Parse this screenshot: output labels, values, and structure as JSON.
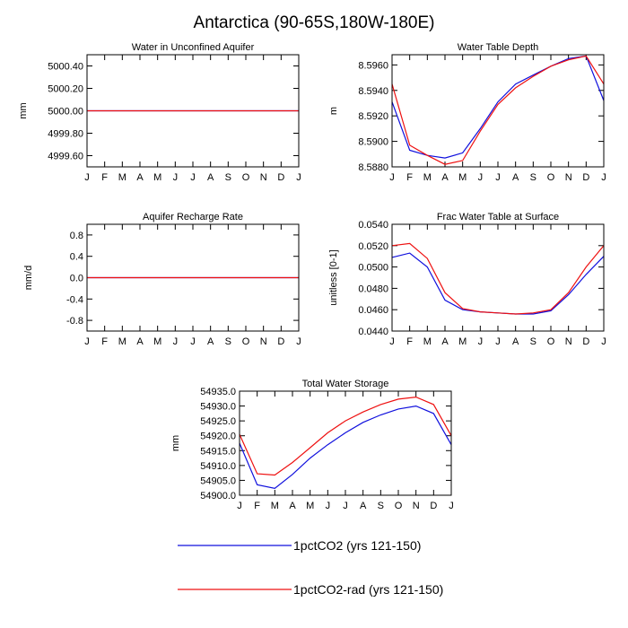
{
  "title": "Antarctica (90-65S,180W-180E)",
  "months": [
    "J",
    "F",
    "M",
    "A",
    "M",
    "J",
    "J",
    "A",
    "S",
    "O",
    "N",
    "D",
    "J"
  ],
  "legend": {
    "entries": [
      {
        "label": "1pctCO2 (yrs 121-150)",
        "color": "#1010dd"
      },
      {
        "label": "1pctCO2-rad (yrs 121-150)",
        "color": "#ee1111"
      }
    ]
  },
  "chart_data": [
    {
      "type": "line",
      "title": "Water in Unconfined Aquifer",
      "ylabel": "mm",
      "ylim": [
        4999.5,
        5000.5
      ],
      "yticks": [
        4999.6,
        4999.8,
        5000.0,
        5000.2,
        5000.4
      ],
      "ytick_labels": [
        "4999.60",
        "4999.80",
        "5000.00",
        "5000.20",
        "5000.40"
      ],
      "x": [
        "J",
        "F",
        "M",
        "A",
        "M",
        "J",
        "J",
        "A",
        "S",
        "O",
        "N",
        "D",
        "J"
      ],
      "series": [
        {
          "name": "1pctCO2 (yrs 121-150)",
          "color": "#1010dd",
          "values": [
            5000,
            5000,
            5000,
            5000,
            5000,
            5000,
            5000,
            5000,
            5000,
            5000,
            5000,
            5000,
            5000
          ]
        },
        {
          "name": "1pctCO2-rad (yrs 121-150)",
          "color": "#ee1111",
          "values": [
            5000,
            5000,
            5000,
            5000,
            5000,
            5000,
            5000,
            5000,
            5000,
            5000,
            5000,
            5000,
            5000
          ]
        }
      ]
    },
    {
      "type": "line",
      "title": "Water Table Depth",
      "ylabel": "m",
      "ylim": [
        8.588,
        8.5968
      ],
      "yticks": [
        8.588,
        8.59,
        8.592,
        8.594,
        8.596
      ],
      "ytick_labels": [
        "8.5880",
        "8.5900",
        "8.5920",
        "8.5940",
        "8.5960"
      ],
      "x": [
        "J",
        "F",
        "M",
        "A",
        "M",
        "J",
        "J",
        "A",
        "S",
        "O",
        "N",
        "D",
        "J"
      ],
      "series": [
        {
          "name": "1pctCO2 (yrs 121-150)",
          "color": "#1010dd",
          "values": [
            8.5931,
            8.5893,
            8.5889,
            8.5887,
            8.5891,
            8.591,
            8.5931,
            8.5945,
            8.5952,
            8.5959,
            8.5965,
            8.5967,
            8.5932
          ]
        },
        {
          "name": "1pctCO2-rad (yrs 121-150)",
          "color": "#ee1111",
          "values": [
            8.5945,
            8.5897,
            8.5889,
            8.5882,
            8.5885,
            8.5908,
            8.5929,
            8.5942,
            8.5951,
            8.5959,
            8.5964,
            8.5967,
            8.5945
          ]
        }
      ]
    },
    {
      "type": "line",
      "title": "Aquifer Recharge Rate",
      "ylabel": "mm/d",
      "ylim": [
        -1.0,
        1.0
      ],
      "yticks": [
        -0.8,
        -0.4,
        0.0,
        0.4,
        0.8
      ],
      "ytick_labels": [
        "-0.8",
        "-0.4",
        "0.0",
        "0.4",
        "0.8"
      ],
      "x": [
        "J",
        "F",
        "M",
        "A",
        "M",
        "J",
        "J",
        "A",
        "S",
        "O",
        "N",
        "D",
        "J"
      ],
      "series": [
        {
          "name": "1pctCO2 (yrs 121-150)",
          "color": "#1010dd",
          "values": [
            0,
            0,
            0,
            0,
            0,
            0,
            0,
            0,
            0,
            0,
            0,
            0,
            0
          ]
        },
        {
          "name": "1pctCO2-rad (yrs 121-150)",
          "color": "#ee1111",
          "values": [
            0,
            0,
            0,
            0,
            0,
            0,
            0,
            0,
            0,
            0,
            0,
            0,
            0
          ]
        }
      ]
    },
    {
      "type": "line",
      "title": "Frac Water Table at Surface",
      "ylabel": "unitless [0-1]",
      "ylim": [
        0.044,
        0.054
      ],
      "yticks": [
        0.044,
        0.046,
        0.048,
        0.05,
        0.052,
        0.054
      ],
      "ytick_labels": [
        "0.0440",
        "0.0460",
        "0.0480",
        "0.0500",
        "0.0520",
        "0.0540"
      ],
      "x": [
        "J",
        "F",
        "M",
        "A",
        "M",
        "J",
        "J",
        "A",
        "S",
        "O",
        "N",
        "D",
        "J"
      ],
      "series": [
        {
          "name": "1pctCO2 (yrs 121-150)",
          "color": "#1010dd",
          "values": [
            0.0509,
            0.0513,
            0.05,
            0.0469,
            0.046,
            0.0458,
            0.0457,
            0.0456,
            0.0456,
            0.0459,
            0.0474,
            0.0493,
            0.051
          ]
        },
        {
          "name": "1pctCO2-rad (yrs 121-150)",
          "color": "#ee1111",
          "values": [
            0.052,
            0.0522,
            0.0508,
            0.0476,
            0.0461,
            0.0458,
            0.0457,
            0.0456,
            0.0457,
            0.046,
            0.0476,
            0.05,
            0.052
          ]
        }
      ]
    },
    {
      "type": "line",
      "title": "Total Water Storage",
      "ylabel": "mm",
      "ylim": [
        54900.0,
        54935.0
      ],
      "yticks": [
        54900,
        54905,
        54910,
        54915,
        54920,
        54925,
        54930,
        54935
      ],
      "ytick_labels": [
        "54900.0",
        "54905.0",
        "54910.0",
        "54915.0",
        "54920.0",
        "54925.0",
        "54930.0",
        "54935.0"
      ],
      "x": [
        "J",
        "F",
        "M",
        "A",
        "M",
        "J",
        "J",
        "A",
        "S",
        "O",
        "N",
        "D",
        "J"
      ],
      "series": [
        {
          "name": "1pctCO2 (yrs 121-150)",
          "color": "#1010dd",
          "values": [
            54917.5,
            54903.5,
            54902.3,
            54907.0,
            54912.5,
            54917.0,
            54921.0,
            54924.5,
            54927.0,
            54929.0,
            54930.0,
            54927.5,
            54917.0
          ]
        },
        {
          "name": "1pctCO2-rad (yrs 121-150)",
          "color": "#ee1111",
          "values": [
            54920.5,
            54907.2,
            54906.8,
            54911.0,
            54916.0,
            54921.0,
            54925.0,
            54928.0,
            54930.5,
            54932.3,
            54933.0,
            54930.5,
            54920.0
          ]
        }
      ]
    }
  ]
}
